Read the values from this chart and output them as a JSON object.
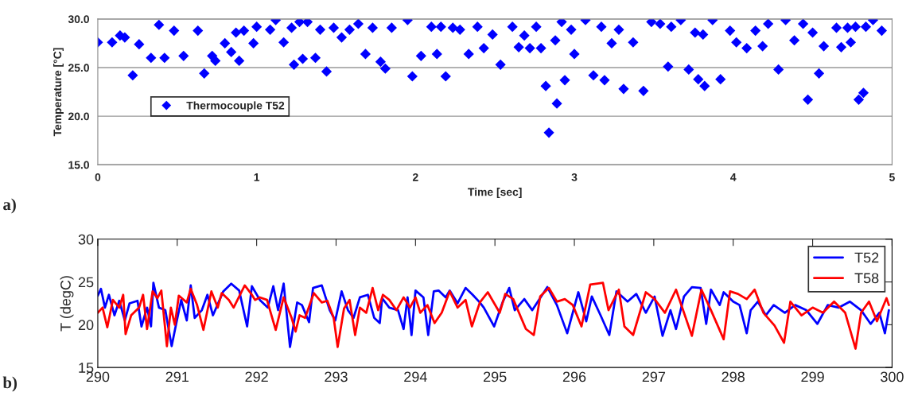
{
  "chart_data": [
    {
      "type": "scatter",
      "xlabel": "Time [sec]",
      "ylabel": "Temperature [°C]",
      "marker": "diamond",
      "grid": "y",
      "legend": "left",
      "xlim": [
        0,
        5
      ],
      "xticks": [
        0,
        1,
        2,
        3,
        4,
        5
      ],
      "ylim": [
        15,
        30
      ],
      "yticks": [
        {
          "value": 15,
          "label": "15.0"
        },
        {
          "value": 20,
          "label": "20.0"
        },
        {
          "value": 25,
          "label": "25.0"
        },
        {
          "value": 30,
          "label": "30.0"
        }
      ],
      "annotations": [
        "a)"
      ],
      "series": [
        {
          "name": "Thermocouple T52",
          "color": "#0000ff",
          "x": [
            0.0,
            0.09,
            0.14,
            0.17,
            0.22,
            0.26,
            0.335,
            0.385,
            0.42,
            0.48,
            0.54,
            0.63,
            0.67,
            0.72,
            0.74,
            0.8,
            0.84,
            0.87,
            0.89,
            0.92,
            0.98,
            1.0,
            1.085,
            1.12,
            1.17,
            1.22,
            1.235,
            1.27,
            1.29,
            1.32,
            1.37,
            1.4,
            1.44,
            1.485,
            1.535,
            1.585,
            1.64,
            1.685,
            1.73,
            1.78,
            1.81,
            1.85,
            1.95,
            1.98,
            2.035,
            2.1,
            2.135,
            2.16,
            2.19,
            2.235,
            2.28,
            2.335,
            2.39,
            2.43,
            2.485,
            2.535,
            2.61,
            2.65,
            2.685,
            2.72,
            2.76,
            2.79,
            2.82,
            2.84,
            2.88,
            2.89,
            2.92,
            2.94,
            2.98,
            3.0,
            3.07,
            3.12,
            3.17,
            3.19,
            3.235,
            3.28,
            3.31,
            3.37,
            3.435,
            3.485,
            3.54,
            3.59,
            3.61,
            3.67,
            3.72,
            3.76,
            3.78,
            3.81,
            3.82,
            3.87,
            3.92,
            3.98,
            4.02,
            4.085,
            4.14,
            4.185,
            4.22,
            4.285,
            4.33,
            4.385,
            4.44,
            4.47,
            4.5,
            4.54,
            4.57,
            4.65,
            4.68,
            4.72,
            4.74,
            4.77,
            4.79,
            4.82,
            4.835,
            4.88,
            4.935
          ],
          "values": [
            27.6,
            27.6,
            28.3,
            28.1,
            24.2,
            27.4,
            26.0,
            29.4,
            26.0,
            28.8,
            26.2,
            28.8,
            24.4,
            26.2,
            25.7,
            27.5,
            26.6,
            28.6,
            25.7,
            28.8,
            27.5,
            29.2,
            28.9,
            29.9,
            27.6,
            29.1,
            25.3,
            29.7,
            25.9,
            29.7,
            26.0,
            28.9,
            24.6,
            29.1,
            28.1,
            28.9,
            29.5,
            26.4,
            29.1,
            25.6,
            24.9,
            29.1,
            29.9,
            24.1,
            26.2,
            29.2,
            26.4,
            29.2,
            24.1,
            29.1,
            28.9,
            26.4,
            29.2,
            27.0,
            28.4,
            25.3,
            29.2,
            27.1,
            28.3,
            27.0,
            29.2,
            27.0,
            23.1,
            18.3,
            27.8,
            21.3,
            29.7,
            23.7,
            28.9,
            26.4,
            29.9,
            24.2,
            29.2,
            23.7,
            27.5,
            28.9,
            22.8,
            27.6,
            22.6,
            29.7,
            29.5,
            25.1,
            29.2,
            29.9,
            24.8,
            28.6,
            23.8,
            28.4,
            23.1,
            29.9,
            23.8,
            28.8,
            27.6,
            27.0,
            28.8,
            27.2,
            29.5,
            24.8,
            29.9,
            27.8,
            29.5,
            21.7,
            28.6,
            24.4,
            27.2,
            29.1,
            27.1,
            29.1,
            27.6,
            29.2,
            21.7,
            22.4,
            29.2,
            29.9,
            28.8
          ]
        }
      ]
    },
    {
      "type": "line",
      "ylabel": "T (degC)",
      "legend": "top right",
      "xlim": [
        290,
        300
      ],
      "xticks": [
        290,
        291,
        292,
        293,
        294,
        295,
        296,
        297,
        298,
        299,
        300
      ],
      "ylim": [
        15,
        30
      ],
      "yticks": [
        15,
        20,
        25,
        30
      ],
      "annotations": [
        "b)"
      ],
      "series": [
        {
          "name": "T52",
          "color": "#0000ff",
          "x": [
            290.0,
            290.04,
            290.09,
            290.14,
            290.21,
            290.27,
            290.34,
            290.4,
            290.5,
            290.55,
            290.62,
            290.67,
            290.7,
            290.77,
            290.85,
            290.93,
            290.98,
            291.05,
            291.12,
            291.17,
            291.22,
            291.31,
            291.38,
            291.45,
            291.58,
            291.68,
            291.78,
            291.88,
            291.94,
            292.04,
            292.14,
            292.21,
            292.27,
            292.34,
            292.42,
            292.51,
            292.57,
            292.66,
            292.71,
            292.82,
            292.92,
            292.99,
            293.07,
            293.15,
            293.22,
            293.3,
            293.4,
            293.48,
            293.55,
            293.58,
            293.67,
            293.78,
            293.85,
            293.9,
            293.95,
            294.0,
            294.1,
            294.16,
            294.23,
            294.29,
            294.38,
            294.43,
            294.53,
            294.63,
            294.72,
            294.81,
            294.86,
            294.99,
            295.1,
            295.18,
            295.25,
            295.37,
            295.47,
            295.66,
            295.78,
            295.91,
            296.05,
            296.15,
            296.22,
            296.33,
            296.44,
            296.53,
            296.67,
            296.78,
            296.9,
            297.01,
            297.11,
            297.21,
            297.28,
            297.38,
            297.48,
            297.59,
            297.66,
            297.72,
            297.83,
            297.88,
            298.0,
            298.08,
            298.17,
            298.22,
            298.31,
            298.41,
            298.51,
            298.65,
            298.78,
            298.92,
            299.06,
            299.19,
            299.33,
            299.47,
            299.61,
            299.73,
            299.84,
            299.91,
            299.96
          ],
          "values": [
            23.4,
            24.2,
            22.0,
            23.5,
            21.1,
            22.8,
            20.5,
            22.5,
            22.8,
            19.8,
            22.0,
            19.8,
            24.9,
            22.0,
            21.7,
            17.5,
            19.8,
            22.9,
            20.5,
            24.6,
            20.8,
            21.7,
            23.5,
            21.1,
            23.9,
            24.8,
            24.0,
            19.8,
            24.5,
            22.9,
            22.0,
            24.5,
            21.7,
            24.8,
            17.4,
            22.6,
            22.3,
            20.3,
            24.3,
            24.6,
            21.7,
            20.5,
            23.9,
            21.7,
            20.8,
            23.2,
            23.5,
            20.8,
            20.2,
            23.1,
            22.0,
            21.7,
            19.5,
            23.2,
            18.8,
            24.0,
            23.2,
            18.8,
            23.9,
            24.0,
            23.2,
            24.0,
            22.5,
            24.3,
            23.5,
            22.6,
            22.0,
            19.8,
            22.7,
            24.3,
            21.7,
            23.0,
            21.7,
            24.4,
            22.3,
            19.0,
            23.8,
            20.4,
            23.3,
            21.1,
            18.8,
            23.9,
            22.7,
            23.6,
            21.4,
            23.3,
            18.7,
            21.7,
            19.5,
            23.3,
            24.4,
            24.3,
            20.1,
            24.1,
            22.3,
            23.8,
            22.7,
            22.3,
            19.0,
            21.7,
            22.7,
            21.1,
            22.3,
            21.4,
            22.3,
            21.7,
            20.1,
            22.3,
            22.0,
            22.7,
            21.7,
            20.1,
            21.4,
            19.0,
            21.7
          ]
        },
        {
          "name": "T58",
          "color": "#ff0000",
          "x": [
            290.0,
            290.06,
            290.12,
            290.19,
            290.27,
            290.32,
            290.35,
            290.42,
            290.52,
            290.57,
            290.62,
            290.69,
            290.75,
            290.8,
            290.87,
            290.92,
            290.97,
            291.02,
            291.12,
            291.17,
            291.25,
            291.33,
            291.43,
            291.51,
            291.56,
            291.65,
            291.71,
            291.85,
            291.94,
            291.98,
            292.04,
            292.13,
            292.24,
            292.34,
            292.44,
            292.49,
            292.54,
            292.61,
            292.72,
            292.82,
            292.89,
            292.97,
            293.02,
            293.1,
            293.17,
            293.24,
            293.3,
            293.38,
            293.46,
            293.53,
            293.59,
            293.67,
            293.76,
            293.85,
            293.93,
            294.0,
            294.06,
            294.15,
            294.24,
            294.33,
            294.43,
            294.53,
            294.63,
            294.71,
            294.81,
            294.91,
            295.06,
            295.13,
            295.23,
            295.39,
            295.49,
            295.57,
            295.68,
            295.78,
            295.88,
            295.98,
            296.09,
            296.2,
            296.36,
            296.43,
            296.56,
            296.63,
            296.74,
            296.9,
            297.01,
            297.14,
            297.28,
            297.38,
            297.48,
            297.6,
            297.72,
            297.88,
            297.96,
            298.06,
            298.17,
            298.27,
            298.38,
            298.52,
            298.64,
            298.72,
            298.86,
            299.0,
            299.13,
            299.27,
            299.41,
            299.54,
            299.61,
            299.71,
            299.81,
            299.93,
            299.96
          ],
          "values": [
            21.4,
            22.0,
            19.7,
            22.9,
            22.0,
            23.5,
            18.9,
            21.1,
            22.0,
            23.5,
            19.5,
            23.9,
            23.1,
            24.0,
            17.5,
            22.0,
            20.0,
            23.4,
            22.6,
            24.2,
            22.3,
            19.4,
            23.9,
            22.0,
            23.7,
            22.9,
            22.0,
            24.6,
            23.5,
            22.9,
            23.2,
            22.9,
            19.4,
            23.2,
            20.8,
            19.2,
            21.1,
            20.8,
            23.7,
            22.6,
            22.8,
            20.8,
            17.4,
            21.9,
            22.9,
            18.8,
            22.0,
            21.4,
            24.3,
            21.7,
            23.5,
            22.9,
            21.7,
            23.2,
            22.0,
            23.2,
            21.4,
            22.3,
            20.2,
            21.4,
            23.9,
            22.0,
            22.9,
            19.8,
            22.6,
            23.8,
            21.4,
            23.6,
            23.0,
            19.5,
            18.8,
            23.3,
            24.3,
            22.7,
            23.0,
            22.3,
            19.8,
            24.7,
            24.9,
            21.7,
            24.1,
            19.8,
            18.8,
            23.8,
            23.0,
            21.4,
            24.1,
            21.4,
            18.7,
            24.1,
            21.7,
            18.3,
            23.9,
            23.6,
            23.0,
            24.1,
            21.4,
            19.9,
            17.9,
            22.7,
            21.1,
            22.0,
            21.4,
            22.7,
            21.4,
            17.2,
            21.4,
            22.7,
            20.4,
            23.1,
            22.3
          ]
        }
      ]
    }
  ]
}
